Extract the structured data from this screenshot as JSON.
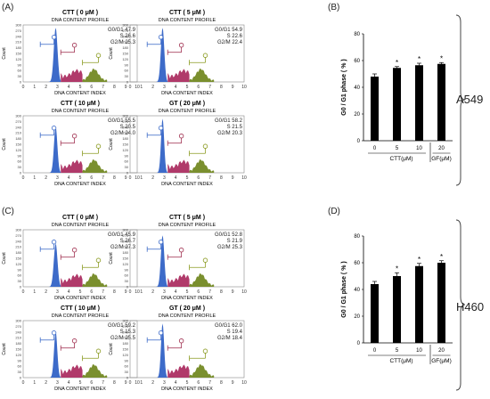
{
  "panels": {
    "a_label": "(A)",
    "b_label": "(B)",
    "c_label": "(C)",
    "d_label": "(D)"
  },
  "cell_lines": {
    "top": "A549",
    "bottom": "H460"
  },
  "histogram_common": {
    "subtitle": "DNA CONTENT PROFILE",
    "xlabel": "DNA CONTENT INDEX",
    "ylabel": "Count",
    "xticks": [
      "0",
      "1",
      "2",
      "3",
      "4",
      "5",
      "6",
      "7",
      "8",
      "9",
      "10"
    ],
    "yticks": [
      "0",
      "30",
      "60",
      "90",
      "120",
      "150",
      "180",
      "210",
      "240",
      "270",
      "300"
    ],
    "colors": {
      "g1": "#3d6bc9",
      "s": "#b03a6a",
      "g2m": "#7a8f2e",
      "marker_g1": "#3d6bc9",
      "marker_s": "#a03050",
      "marker_g2m": "#8a9a20"
    }
  },
  "histograms_a": [
    {
      "title": "CTT ( 0 μM )",
      "g1": "G0/G1 47.9",
      "s": "S 26.6",
      "g2m": "G2/M 25.3",
      "peak": 1.0,
      "spread": 1.0
    },
    {
      "title": "CTT ( 5 μM )",
      "g1": "G0/G1 54.9",
      "s": "S 22.6",
      "g2m": "G2/M 22.4",
      "peak": 1.0,
      "spread": 0.9
    },
    {
      "title": "CTT ( 10 μM )",
      "g1": "G0/G1 55.5",
      "s": "S 20.5",
      "g2m": "G2/M 24.0",
      "peak": 0.85,
      "spread": 0.9
    },
    {
      "title": "GT ( 20 μM )",
      "g1": "G0/G1 58.2",
      "s": "S 21.5",
      "g2m": "G2/M 20.3",
      "peak": 1.0,
      "spread": 0.8
    }
  ],
  "histograms_c": [
    {
      "title": "CTT ( 0 μM )",
      "g1": "G0/G1 45.9",
      "s": "S 26.7",
      "g2m": "G2/M 27.3",
      "peak": 0.8,
      "spread": 1.0
    },
    {
      "title": "CTT ( 5 μM )",
      "g1": "G0/G1 52.8",
      "s": "S 21.9",
      "g2m": "G2/M 25.3",
      "peak": 0.95,
      "spread": 0.9
    },
    {
      "title": "CTT ( 10 μM )",
      "g1": "G0/G1 59.2",
      "s": "S 15.3",
      "g2m": "G2/M 25.5",
      "peak": 0.85,
      "spread": 0.85
    },
    {
      "title": "GT ( 20 μM )",
      "g1": "G0/G1 62.0",
      "s": "S 19.4",
      "g2m": "G2/M 18.4",
      "peak": 1.0,
      "spread": 0.8
    }
  ],
  "chart_data": [
    {
      "type": "bar",
      "categories": [
        "0",
        "5",
        "10",
        "20"
      ],
      "values": [
        48,
        54.5,
        56.5,
        57.5
      ],
      "errors": [
        2,
        1,
        1.5,
        1
      ],
      "significance": [
        "",
        "*",
        "*",
        "*"
      ],
      "ylabel": "G0 / G1 phase ( % )",
      "ylim": [
        0,
        80
      ],
      "yticks": [
        "0",
        "20",
        "40",
        "60",
        "80"
      ],
      "group_labels": [
        "CTT(μM)",
        "GF(μM)"
      ],
      "grid": false
    },
    {
      "type": "bar",
      "categories": [
        "0",
        "5",
        "10",
        "20"
      ],
      "values": [
        44,
        50,
        57.5,
        60
      ],
      "errors": [
        2,
        2.5,
        2,
        1.5
      ],
      "significance": [
        "",
        "*",
        "*",
        "*"
      ],
      "ylabel": "G0 / G1 phase ( % )",
      "ylim": [
        0,
        80
      ],
      "yticks": [
        "0",
        "20",
        "40",
        "60",
        "80"
      ],
      "group_labels": [
        "CTT(μM)",
        "GF(μM)"
      ],
      "grid": false
    }
  ]
}
